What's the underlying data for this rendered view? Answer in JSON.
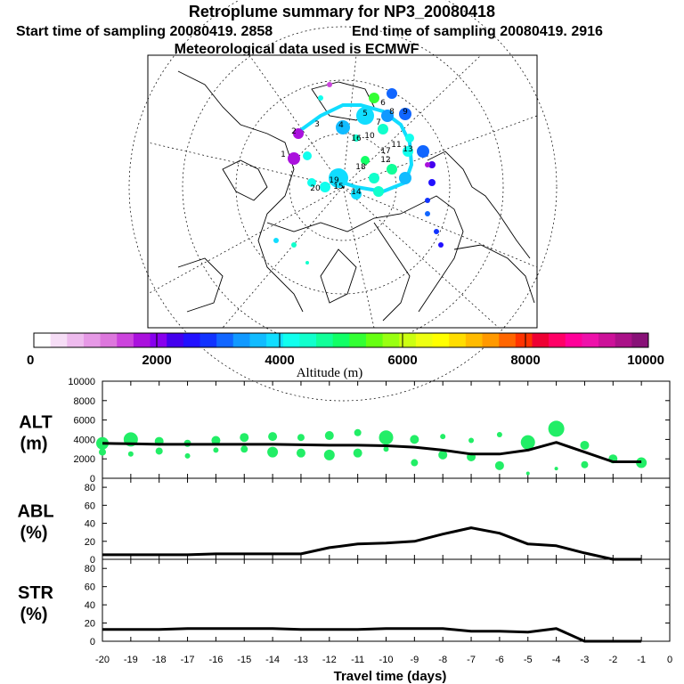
{
  "header": {
    "title": "Retroplume summary for NP3_20080418",
    "start_time": "Start time of sampling 20080419.  2858",
    "end_time": "End time of sampling 20080419.  2916",
    "met_data": "Meteorological data used is ECMWF"
  },
  "colorbar": {
    "labels": [
      "0",
      "2000",
      "4000",
      "6000",
      "8000",
      "10000"
    ],
    "title": "Altitude (m)",
    "colors": [
      "#ffffff",
      "#f6ddf6",
      "#eebbee",
      "#e699e6",
      "#dd77dd",
      "#cc44dd",
      "#aa11dd",
      "#8800ee",
      "#4400ee",
      "#2211ff",
      "#1133ff",
      "#1166ff",
      "#1199ff",
      "#11bbff",
      "#11ddff",
      "#11ffee",
      "#11ffcc",
      "#11ff99",
      "#11ff66",
      "#33ff33",
      "#66ff11",
      "#99ff11",
      "#ccff11",
      "#eeff11",
      "#ffff00",
      "#ffdd00",
      "#ffbb00",
      "#ff9900",
      "#ff6600",
      "#ff3300",
      "#ee0033",
      "#ff0066",
      "#ff0099",
      "#ee11aa",
      "#cc1199",
      "#aa1188",
      "#881177"
    ]
  },
  "map": {
    "numbers": [
      "1",
      "2",
      "3",
      "4",
      "5",
      "6",
      "7",
      "8",
      "9",
      "10",
      "11",
      "12",
      "13",
      "14",
      "15",
      "16",
      "17",
      "18",
      "19",
      "20"
    ]
  },
  "chart_data": [
    {
      "type": "line",
      "panel": "ALT",
      "ylabel_top": "ALT",
      "ylabel_bottom": "(m)",
      "ylim": [
        0,
        10000
      ],
      "yticks": [
        "0",
        "2000",
        "4000",
        "6000",
        "8000",
        "10000"
      ],
      "x": [
        -20,
        -19,
        -18,
        -17,
        -16,
        -15,
        -14,
        -13,
        -12,
        -11,
        -10,
        -9,
        -8,
        -7,
        -6,
        -5,
        -4,
        -3,
        -2,
        -1
      ],
      "values": [
        3600,
        3550,
        3500,
        3500,
        3500,
        3500,
        3500,
        3450,
        3400,
        3400,
        3350,
        3200,
        2900,
        2500,
        2500,
        2900,
        3700,
        2700,
        1700,
        1700
      ],
      "scatter_color": "#22ee66",
      "scatter": [
        {
          "x": -20,
          "y": 3600,
          "r": 7
        },
        {
          "x": -20,
          "y": 2700,
          "r": 4
        },
        {
          "x": -19,
          "y": 4000,
          "r": 8
        },
        {
          "x": -19,
          "y": 2500,
          "r": 3
        },
        {
          "x": -18,
          "y": 3800,
          "r": 5
        },
        {
          "x": -18,
          "y": 2800,
          "r": 4
        },
        {
          "x": -17,
          "y": 3600,
          "r": 4
        },
        {
          "x": -17,
          "y": 2300,
          "r": 3
        },
        {
          "x": -16,
          "y": 3900,
          "r": 5
        },
        {
          "x": -16,
          "y": 2900,
          "r": 3
        },
        {
          "x": -15,
          "y": 4200,
          "r": 5
        },
        {
          "x": -15,
          "y": 3000,
          "r": 4
        },
        {
          "x": -14,
          "y": 4300,
          "r": 5
        },
        {
          "x": -14,
          "y": 2700,
          "r": 6
        },
        {
          "x": -13,
          "y": 4200,
          "r": 4
        },
        {
          "x": -13,
          "y": 2600,
          "r": 5
        },
        {
          "x": -12,
          "y": 4400,
          "r": 5
        },
        {
          "x": -12,
          "y": 2400,
          "r": 6
        },
        {
          "x": -11,
          "y": 4700,
          "r": 4
        },
        {
          "x": -11,
          "y": 2600,
          "r": 5
        },
        {
          "x": -10,
          "y": 4200,
          "r": 8
        },
        {
          "x": -10,
          "y": 3000,
          "r": 3
        },
        {
          "x": -9,
          "y": 4000,
          "r": 5
        },
        {
          "x": -9,
          "y": 1600,
          "r": 4
        },
        {
          "x": -8,
          "y": 4300,
          "r": 3
        },
        {
          "x": -8,
          "y": 2400,
          "r": 5
        },
        {
          "x": -7,
          "y": 3900,
          "r": 3
        },
        {
          "x": -7,
          "y": 2200,
          "r": 5
        },
        {
          "x": -6,
          "y": 4500,
          "r": 3
        },
        {
          "x": -6,
          "y": 1300,
          "r": 5
        },
        {
          "x": -5,
          "y": 3700,
          "r": 8
        },
        {
          "x": -5,
          "y": 500,
          "r": 2
        },
        {
          "x": -4,
          "y": 5100,
          "r": 9
        },
        {
          "x": -4,
          "y": 1000,
          "r": 2
        },
        {
          "x": -3,
          "y": 3400,
          "r": 5
        },
        {
          "x": -3,
          "y": 1400,
          "r": 4
        },
        {
          "x": -2,
          "y": 2000,
          "r": 5
        },
        {
          "x": -1,
          "y": 1600,
          "r": 6
        }
      ]
    },
    {
      "type": "line",
      "panel": "ABL",
      "ylabel_top": "ABL",
      "ylabel_bottom": "(%)",
      "ylim": [
        0,
        90
      ],
      "yticks": [
        "0",
        "20",
        "40",
        "60",
        "80"
      ],
      "x": [
        -20,
        -19,
        -18,
        -17,
        -16,
        -15,
        -14,
        -13,
        -12,
        -11,
        -10,
        -9,
        -8,
        -7,
        -6,
        -5,
        -4,
        -3,
        -2,
        -1
      ],
      "values": [
        5,
        5,
        5,
        5,
        6,
        6,
        6,
        6,
        13,
        17,
        18,
        20,
        28,
        35,
        29,
        17,
        15,
        7,
        0,
        0
      ]
    },
    {
      "type": "line",
      "panel": "STR",
      "ylabel_top": "STR",
      "ylabel_bottom": "(%)",
      "ylim": [
        0,
        90
      ],
      "yticks": [
        "0",
        "20",
        "40",
        "60",
        "80"
      ],
      "x": [
        -20,
        -19,
        -18,
        -17,
        -16,
        -15,
        -14,
        -13,
        -12,
        -11,
        -10,
        -9,
        -8,
        -7,
        -6,
        -5,
        -4,
        -3,
        -2,
        -1
      ],
      "values": [
        13,
        13,
        13,
        14,
        14,
        14,
        14,
        13,
        13,
        13,
        14,
        14,
        14,
        11,
        11,
        10,
        14,
        0,
        0,
        0
      ]
    }
  ],
  "x_axis": {
    "xlabel": "Travel time (days)",
    "ticks": [
      "-20",
      "-19",
      "-18",
      "-17",
      "-16",
      "-15",
      "-14",
      "-13",
      "-12",
      "-11",
      "-10",
      "-9",
      "-8",
      "-7",
      "-6",
      "-5",
      "-4",
      "-3",
      "-2",
      "-1",
      "0"
    ]
  }
}
